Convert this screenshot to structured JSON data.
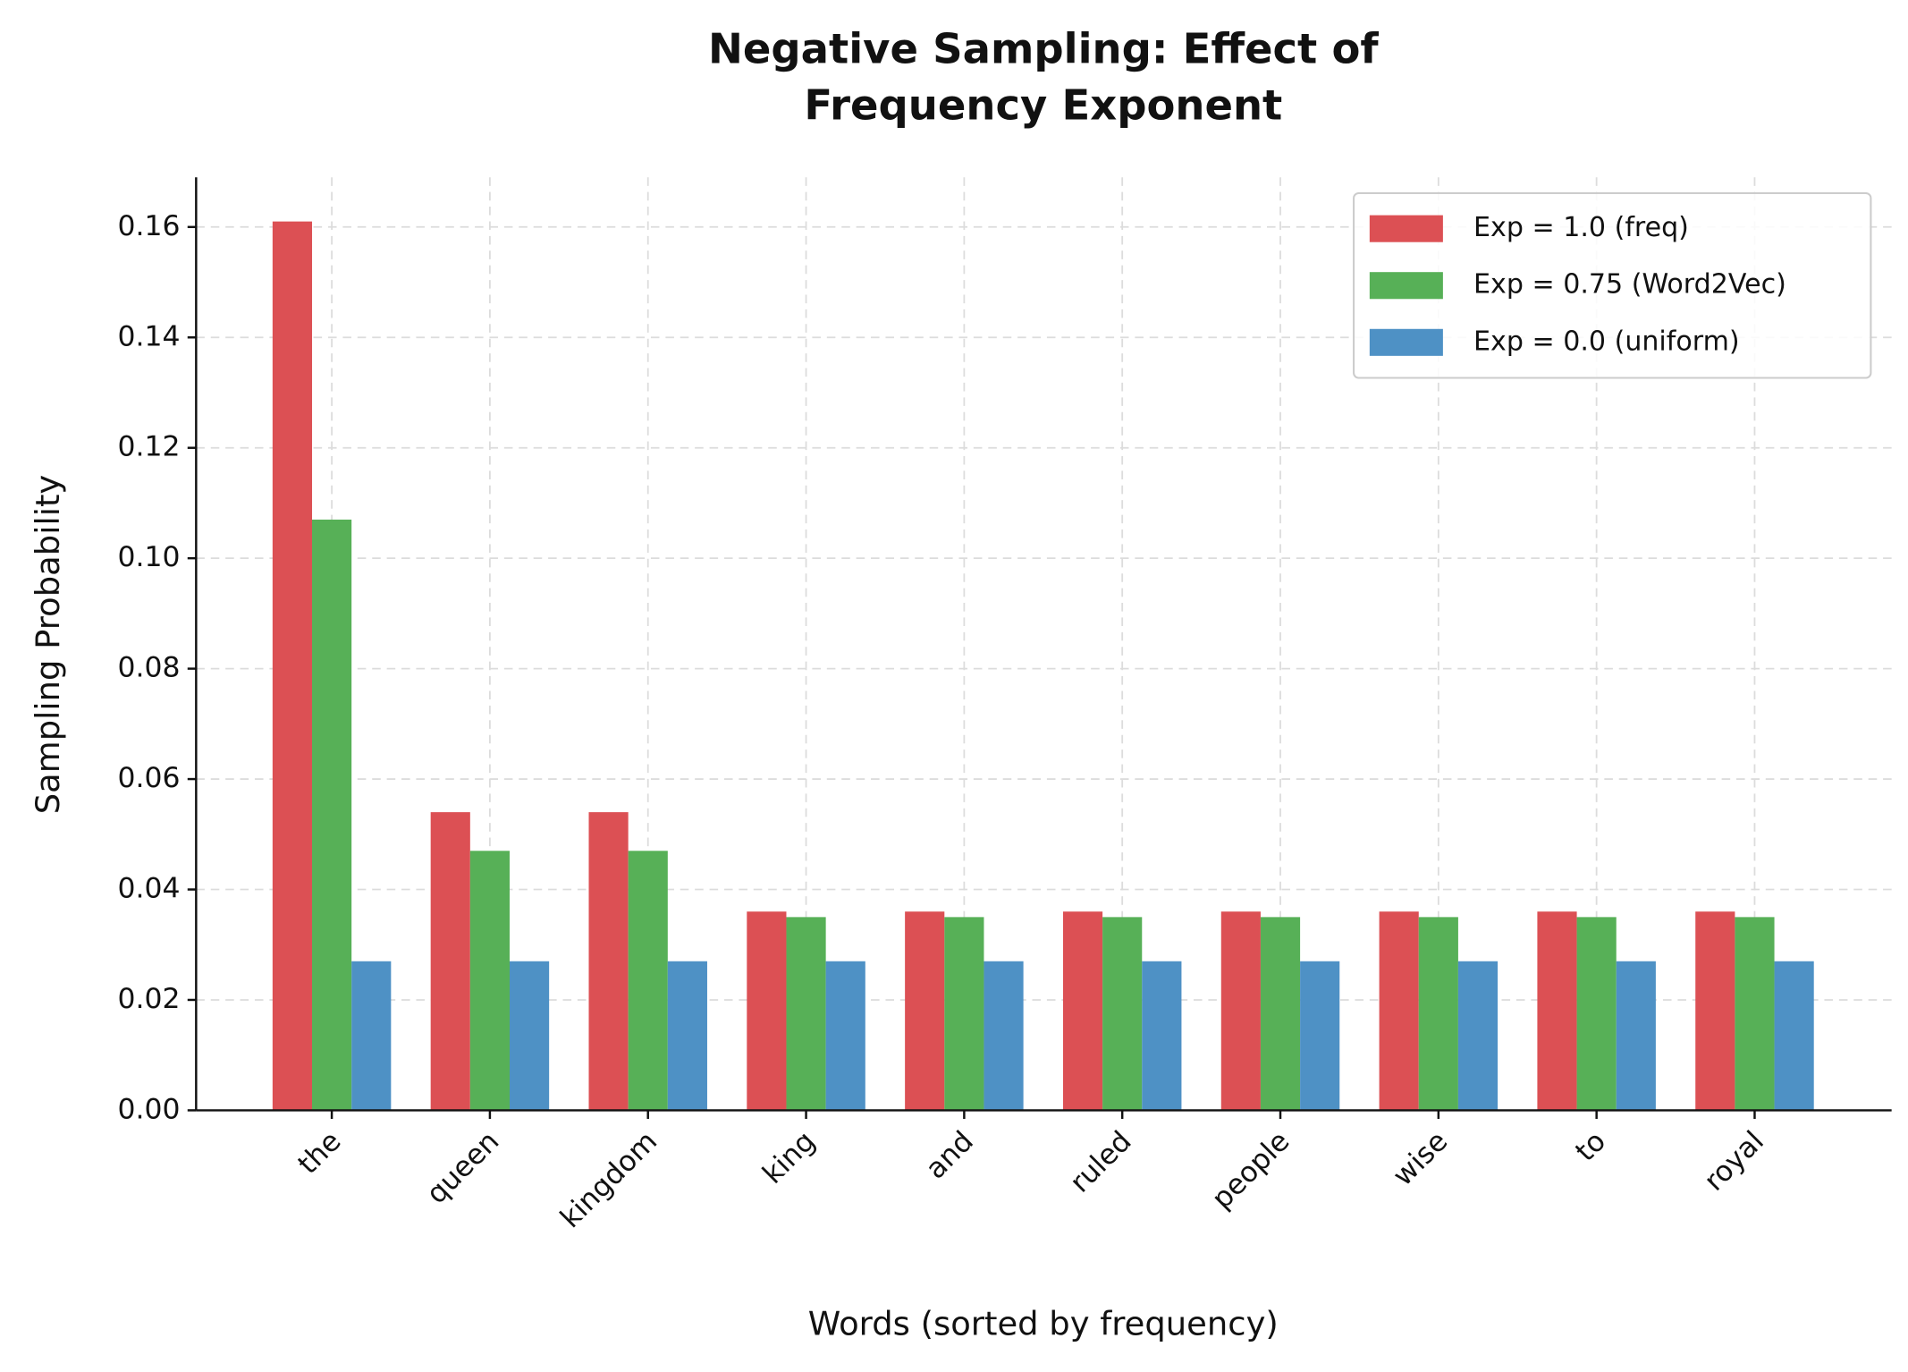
{
  "chart_data": {
    "type": "bar",
    "title": "Negative Sampling: Effect of\nFrequency Exponent",
    "x_label": "Words (sorted by frequency)",
    "y_label": "Sampling Probability",
    "categories": [
      "the",
      "queen",
      "kingdom",
      "king",
      "and",
      "ruled",
      "people",
      "wise",
      "to",
      "royal"
    ],
    "series": [
      {
        "name": "Exp = 1.0 (freq)",
        "color": "#dc5054",
        "values": [
          0.161,
          0.054,
          0.054,
          0.036,
          0.036,
          0.036,
          0.036,
          0.036,
          0.036,
          0.036
        ]
      },
      {
        "name": "Exp = 0.75 (Word2Vec)",
        "color": "#57b057",
        "values": [
          0.107,
          0.047,
          0.047,
          0.035,
          0.035,
          0.035,
          0.035,
          0.035,
          0.035,
          0.035
        ]
      },
      {
        "name": "Exp = 0.0 (uniform)",
        "color": "#4e91c5",
        "values": [
          0.027,
          0.027,
          0.027,
          0.027,
          0.027,
          0.027,
          0.027,
          0.027,
          0.027,
          0.027
        ]
      }
    ],
    "ylim": [
      0,
      0.169
    ],
    "yticks": [
      {
        "value": 0,
        "label": "0.00"
      },
      {
        "value": 0.02,
        "label": "0.02"
      },
      {
        "value": 0.04,
        "label": "0.04"
      },
      {
        "value": 0.06,
        "label": "0.06"
      },
      {
        "value": 0.08,
        "label": "0.08"
      },
      {
        "value": 0.1,
        "label": "0.10"
      },
      {
        "value": 0.12,
        "label": "0.12"
      },
      {
        "value": 0.14,
        "label": "0.14"
      },
      {
        "value": 0.16,
        "label": "0.16"
      }
    ],
    "grid": true,
    "legend": "upper right"
  }
}
